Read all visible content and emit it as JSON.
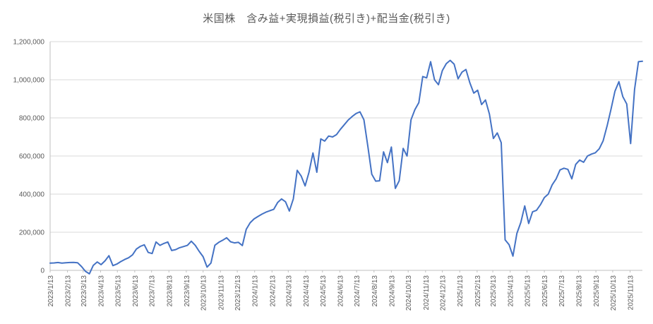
{
  "page": {
    "background": "#ffffff"
  },
  "chart_data": {
    "type": "line",
    "title": "米国株　含み益+実現損益(税引き)+配当金(税引き)",
    "xlabel": "",
    "ylabel": "",
    "ylim": [
      0,
      1200000
    ],
    "y_tick_values": [
      0,
      200000,
      400000,
      600000,
      800000,
      1000000,
      1200000
    ],
    "y_tick_labels": [
      "0",
      "200,000",
      "400,000",
      "600,000",
      "800,000",
      "1,000,000",
      "1,200,000"
    ],
    "x_tick_labels": [
      "2023/1/13",
      "2023/2/13",
      "2023/3/13",
      "2023/4/13",
      "2023/5/13",
      "2023/6/13",
      "2023/7/13",
      "2023/8/13",
      "2023/9/13",
      "2023/10/13",
      "2023/11/13",
      "2023/12/13",
      "2024/1/13",
      "2024/2/13",
      "2024/3/13",
      "2024/4/13",
      "2024/5/13",
      "2024/6/13",
      "2024/7/13",
      "2024/8/13",
      "2024/9/13",
      "2024/10/13",
      "2024/11/13",
      "2024/12/13",
      "2025/1/13",
      "2025/2/13",
      "2025/3/13",
      "2025/4/13",
      "2025/5/13",
      "2025/6/13",
      "2025/7/13",
      "2025/8/13",
      "2025/9/13",
      "2025/10/13",
      "2025/11/13"
    ],
    "grid": "horizontal",
    "legend": "none",
    "colors": {
      "series": "#4472C4",
      "gridline": "#D9D9D9",
      "axis_line": "#BFBFBF",
      "tick_text": "#595959",
      "title_text": "#595959"
    },
    "series": [
      {
        "name": "含み益+実現損益(税引き)+配当金(税引き)",
        "start_date": "2023/1/13",
        "interval_days": 7,
        "values": [
          38000,
          39000,
          41000,
          38000,
          40000,
          41000,
          42000,
          40000,
          20000,
          -5000,
          -18000,
          26000,
          44000,
          30000,
          50000,
          77000,
          25000,
          33000,
          46000,
          57000,
          66000,
          81000,
          112000,
          126000,
          134000,
          94000,
          88000,
          149000,
          131000,
          141000,
          149000,
          104000,
          109000,
          119000,
          125000,
          131000,
          153000,
          131000,
          100000,
          72000,
          17000,
          38000,
          132000,
          147000,
          158000,
          171000,
          150000,
          144000,
          147000,
          130000,
          215000,
          250000,
          270000,
          283000,
          295000,
          305000,
          313000,
          320000,
          356000,
          375000,
          360000,
          311000,
          375000,
          525000,
          495000,
          443000,
          515000,
          616000,
          515000,
          690000,
          678000,
          705000,
          700000,
          712000,
          740000,
          764000,
          789000,
          807000,
          823000,
          832000,
          790000,
          650000,
          505000,
          468000,
          470000,
          622000,
          565000,
          647000,
          430000,
          470000,
          640000,
          600000,
          790000,
          843000,
          880000,
          1017000,
          1010000,
          1095000,
          1000000,
          974000,
          1048000,
          1085000,
          1102000,
          1082000,
          1005000,
          1040000,
          1054000,
          985000,
          930000,
          945000,
          870000,
          894000,
          820000,
          692000,
          721000,
          670000,
          160000,
          135000,
          75000,
          194000,
          252000,
          338000,
          246000,
          307000,
          315000,
          344000,
          382000,
          400000,
          449000,
          480000,
          527000,
          536000,
          530000,
          480000,
          556000,
          579000,
          567000,
          600000,
          610000,
          617000,
          638000,
          680000,
          758000,
          845000,
          940000,
          990000,
          912000,
          873000,
          665000,
          950000,
          1095000,
          1097000
        ]
      }
    ]
  }
}
